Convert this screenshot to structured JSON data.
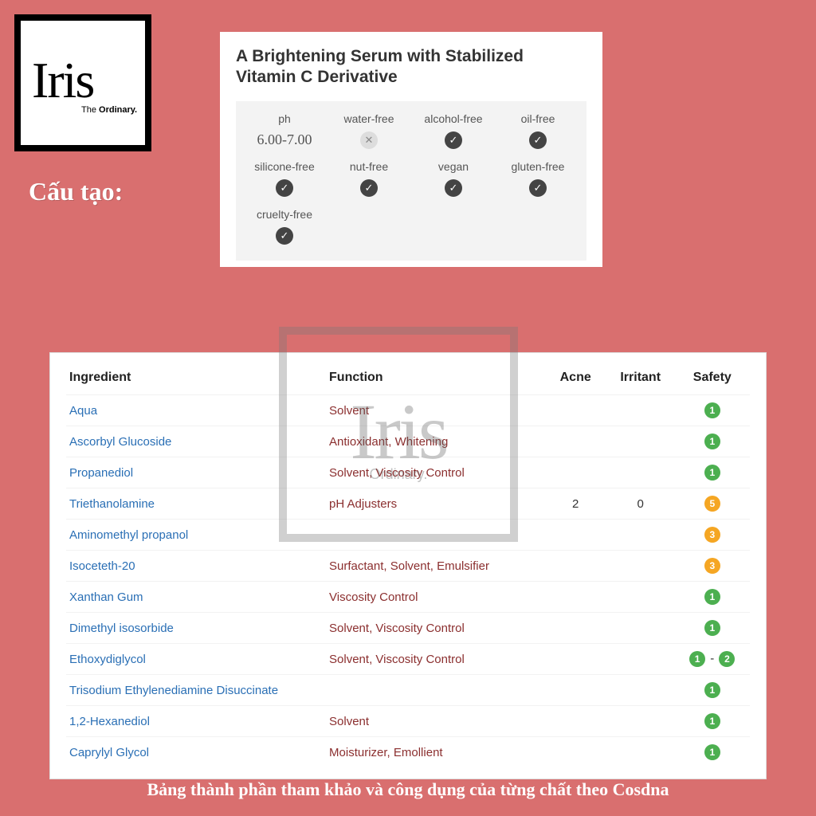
{
  "logo": {
    "main": "Iris",
    "sub_pre": "The ",
    "sub_bold": "Ordinary."
  },
  "cautao": "Cấu tạo:",
  "card": {
    "title": "A Brightening Serum with Stabilized Vitamin C Derivative",
    "attrs": [
      {
        "label": "ph",
        "type": "value",
        "value": "6.00-7.00"
      },
      {
        "label": "water-free",
        "type": "x"
      },
      {
        "label": "alcohol-free",
        "type": "check"
      },
      {
        "label": "oil-free",
        "type": "check"
      },
      {
        "label": "silicone-free",
        "type": "check"
      },
      {
        "label": "nut-free",
        "type": "check"
      },
      {
        "label": "vegan",
        "type": "check"
      },
      {
        "label": "gluten-free",
        "type": "check"
      },
      {
        "label": "cruelty-free",
        "type": "check"
      }
    ]
  },
  "watermark": {
    "main": "Iris",
    "sub": "Ordinary."
  },
  "table": {
    "headers": {
      "ingredient": "Ingredient",
      "function": "Function",
      "acne": "Acne",
      "irritant": "Irritant",
      "safety": "Safety"
    },
    "rows": [
      {
        "ingredient": "Aqua",
        "function": "Solvent",
        "acne": "",
        "irritant": "",
        "safety": [
          {
            "n": "1",
            "c": "g"
          }
        ]
      },
      {
        "ingredient": "Ascorbyl Glucoside",
        "function": "Antioxidant, Whitening",
        "acne": "",
        "irritant": "",
        "safety": [
          {
            "n": "1",
            "c": "g"
          }
        ]
      },
      {
        "ingredient": "Propanediol",
        "function": "Solvent, Viscosity Control",
        "acne": "",
        "irritant": "",
        "safety": [
          {
            "n": "1",
            "c": "g"
          }
        ]
      },
      {
        "ingredient": "Triethanolamine",
        "function": "pH Adjusters",
        "acne": "2",
        "irritant": "0",
        "safety": [
          {
            "n": "5",
            "c": "y"
          }
        ]
      },
      {
        "ingredient": "Aminomethyl propanol",
        "function": "",
        "acne": "",
        "irritant": "",
        "safety": [
          {
            "n": "3",
            "c": "y"
          }
        ]
      },
      {
        "ingredient": "Isoceteth-20",
        "function": "Surfactant, Solvent, Emulsifier",
        "acne": "",
        "irritant": "",
        "safety": [
          {
            "n": "3",
            "c": "y"
          }
        ]
      },
      {
        "ingredient": "Xanthan Gum",
        "function": "Viscosity Control",
        "acne": "",
        "irritant": "",
        "safety": [
          {
            "n": "1",
            "c": "g"
          }
        ]
      },
      {
        "ingredient": "Dimethyl isosorbide",
        "function": "Solvent, Viscosity Control",
        "acne": "",
        "irritant": "",
        "safety": [
          {
            "n": "1",
            "c": "g"
          }
        ]
      },
      {
        "ingredient": "Ethoxydiglycol",
        "function": "Solvent, Viscosity Control",
        "acne": "",
        "irritant": "",
        "safety": [
          {
            "n": "1",
            "c": "g"
          },
          {
            "n": "2",
            "c": "g"
          }
        ]
      },
      {
        "ingredient": "Trisodium Ethylenediamine Disuccinate",
        "function": "",
        "acne": "",
        "irritant": "",
        "safety": [
          {
            "n": "1",
            "c": "g"
          }
        ]
      },
      {
        "ingredient": "1,2-Hexanediol",
        "function": "Solvent",
        "acne": "",
        "irritant": "",
        "safety": [
          {
            "n": "1",
            "c": "g"
          }
        ]
      },
      {
        "ingredient": "Caprylyl Glycol",
        "function": "Moisturizer, Emollient",
        "acne": "",
        "irritant": "",
        "safety": [
          {
            "n": "1",
            "c": "g"
          }
        ]
      }
    ]
  },
  "footer": "Bảng thành phần tham khảo  và công dụng của từng chất theo Cosdna"
}
